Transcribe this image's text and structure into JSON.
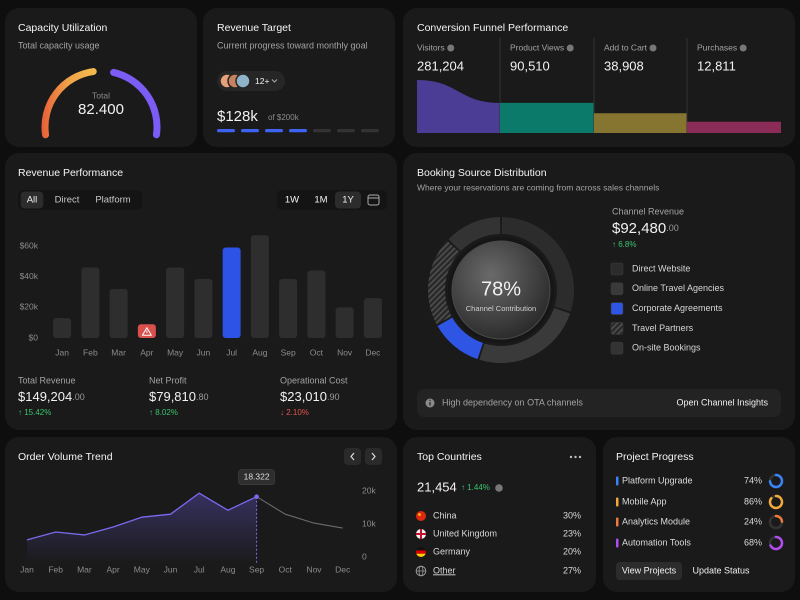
{
  "capacity": {
    "title": "Capacity Utilization",
    "subtitle": "Total capacity usage",
    "label": "Total",
    "value": "82.400"
  },
  "revenue_target": {
    "title": "Revenue Target",
    "subtitle": "Current progress toward monthly goal",
    "team": "12+",
    "current": {
      "value": 128000,
      "label": "$128k"
    },
    "target": {
      "value": 200000,
      "label": "of $200k"
    }
  },
  "funnel": {
    "type": "funnel",
    "title": "Conversion Funnel Performance",
    "categories": [
      "Visitors",
      "Product Views",
      "Add to Cart",
      "Purchases"
    ],
    "values": [
      281204,
      90510,
      38908,
      12811
    ],
    "value_labels": [
      "281,204",
      "90,510",
      "38,908",
      "12,811"
    ],
    "colors": [
      "#4b3d96",
      "#0c7a6b",
      "#867531",
      "#8a2c57"
    ]
  },
  "revenue_performance": {
    "type": "bar",
    "title": "Revenue Performance",
    "filters": [
      "All",
      "Direct",
      "Platform"
    ],
    "active_filter": "All",
    "ranges": [
      "1W",
      "1M",
      "1Y"
    ],
    "active_range": "1Y",
    "categories": [
      "Jan",
      "Feb",
      "Mar",
      "Apr",
      "May",
      "Jun",
      "Jul",
      "Aug",
      "Sep",
      "Oct",
      "Nov",
      "Dec"
    ],
    "values": [
      13000,
      46000,
      32000,
      9000,
      46000,
      38500,
      59000,
      67000,
      38500,
      44000,
      20000,
      26000
    ],
    "color": "#2e2e2e",
    "highlight": "Jul",
    "highlight_color": "#2d52e6",
    "alert": "Apr",
    "alert_color": "#d9504c",
    "ylim": [
      0,
      70000
    ],
    "yticks": [
      {
        "value": 0,
        "label": "$0"
      },
      {
        "value": 20000,
        "label": "$20k"
      },
      {
        "value": 40000,
        "label": "$40k"
      },
      {
        "value": 60000,
        "label": "$60k"
      }
    ],
    "stats": [
      {
        "label": "Total Revenue",
        "value": "$149,204",
        "cents": ".00",
        "change": "↑ 15.42%",
        "trend": "up"
      },
      {
        "label": "Net Profit",
        "value": "$79,810",
        "cents": ".80",
        "change": "↑ 8.02%",
        "trend": "up"
      },
      {
        "label": "Operational Cost",
        "value": "$23,010",
        "cents": ".90",
        "change": "↓ 2.10%",
        "trend": "down"
      }
    ]
  },
  "booking": {
    "type": "donut",
    "title": "Booking Source Distribution",
    "subtitle": "Where your reservations are coming from across sales channels",
    "center_value": "78%",
    "center_label": "Channel Contribution",
    "metric_label": "Channel Revenue",
    "metric_value": "$92,480",
    "metric_cents": ".00",
    "metric_change": "↑ 6.8%",
    "categories": [
      "Direct Website",
      "Online Travel Agencies",
      "Corporate Agreements",
      "Travel Partners",
      "On-site Bookings"
    ],
    "values": [
      30,
      25,
      12,
      20,
      13
    ],
    "colors": [
      "#2c2c2c",
      "#3a3a3a",
      "#2f55e4",
      "#4a4a4a",
      "#333333"
    ],
    "hatched": "Travel Partners",
    "note": "High dependency on OTA channels",
    "action": "Open Channel Insights"
  },
  "order_trend": {
    "type": "line",
    "title": "Order Volume Trend",
    "categories": [
      "Jan",
      "Feb",
      "Mar",
      "Apr",
      "May",
      "Jun",
      "Jul",
      "Aug",
      "Sep",
      "Oct",
      "Nov",
      "Dec"
    ],
    "values": [
      5200,
      7600,
      6700,
      9100,
      12100,
      13000,
      19400,
      14200,
      18322,
      13000,
      10300,
      8800
    ],
    "value_labels": [
      null,
      null,
      null,
      null,
      null,
      null,
      null,
      null,
      "18.322",
      null,
      null,
      null
    ],
    "highlight": "Sep",
    "color": "#7a6af0",
    "ylim": [
      0,
      24000
    ],
    "yticks": [
      0,
      {
        "value": 10000,
        "label": "10k"
      },
      {
        "value": 20000,
        "label": "20k"
      }
    ]
  },
  "countries": {
    "title": "Top Countries",
    "total": "21,454",
    "change": "↑ 1.44%",
    "rows": [
      {
        "name": "China",
        "share": "30%"
      },
      {
        "name": "United Kingdom",
        "share": "23%"
      },
      {
        "name": "Germany",
        "share": "20%"
      },
      {
        "name": "Other",
        "share": "27%"
      }
    ]
  },
  "projects": {
    "type": "ring",
    "title": "Project Progress",
    "categories": [
      "Platform Upgrade",
      "Mobile App",
      "Analytics Module",
      "Automation Tools"
    ],
    "values": [
      74,
      86,
      24,
      68
    ],
    "value_labels": [
      "74%",
      "86%",
      "24%",
      "68%"
    ],
    "colors": [
      "#3b82f6",
      "#f2a93b",
      "#ef7a3a",
      "#b14cf0"
    ],
    "actions": [
      "View Projects",
      "Update Status"
    ]
  }
}
